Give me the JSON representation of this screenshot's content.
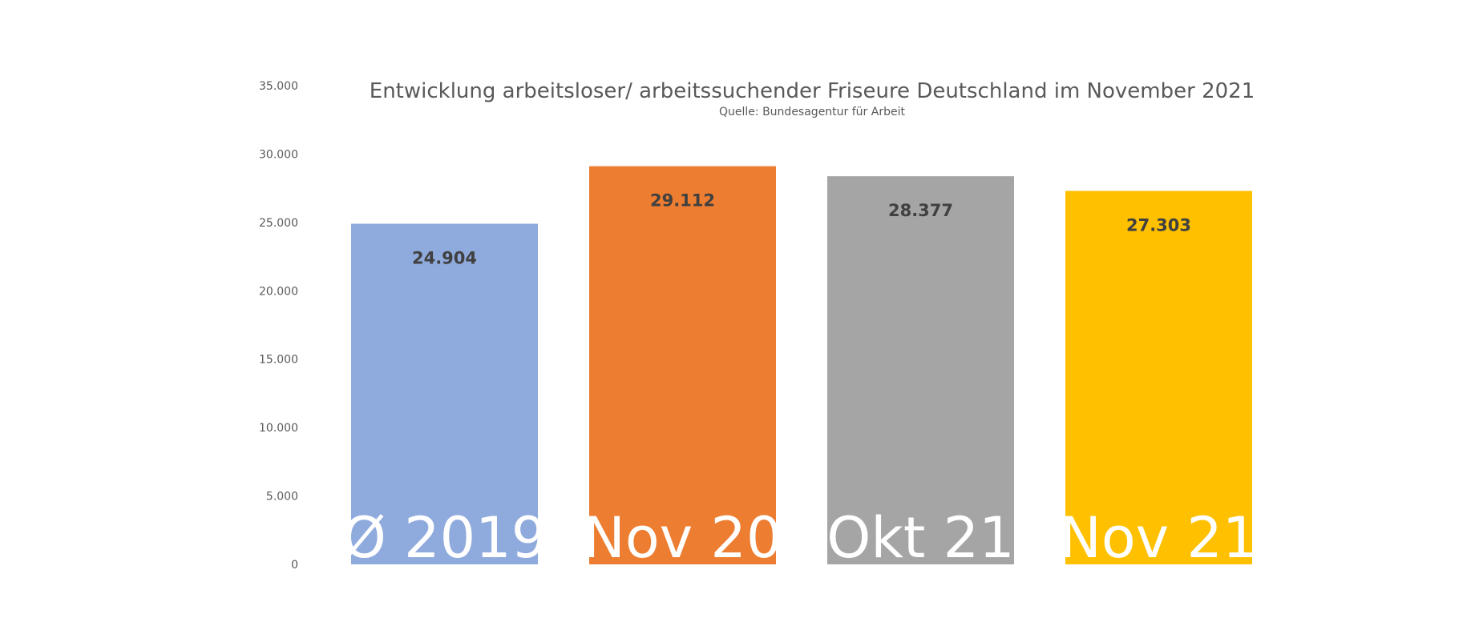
{
  "chart_data": {
    "type": "bar",
    "title": "Entwicklung arbeitsloser/ arbeitssuchender Friseure Deutschland im November 2021",
    "subtitle": "Quelle: Bundesagentur für Arbeit",
    "categories": [
      "Ø 2019",
      "Nov 20",
      "Okt 21",
      "Nov 21"
    ],
    "values": [
      24904,
      29112,
      28377,
      27303
    ],
    "value_labels": [
      "24.904",
      "29.112",
      "28.377",
      "27.303"
    ],
    "colors": [
      "#8FAADC",
      "#ED7D31",
      "#A5A5A5",
      "#FFC000"
    ],
    "ylim": [
      0,
      35000
    ],
    "yticks": [
      0,
      5000,
      10000,
      15000,
      20000,
      25000,
      30000,
      35000
    ],
    "ytick_labels": [
      "0",
      "5.000",
      "10.000",
      "15.000",
      "20.000",
      "25.000",
      "30.000",
      "35.000"
    ],
    "grid": false,
    "legend": "none"
  }
}
